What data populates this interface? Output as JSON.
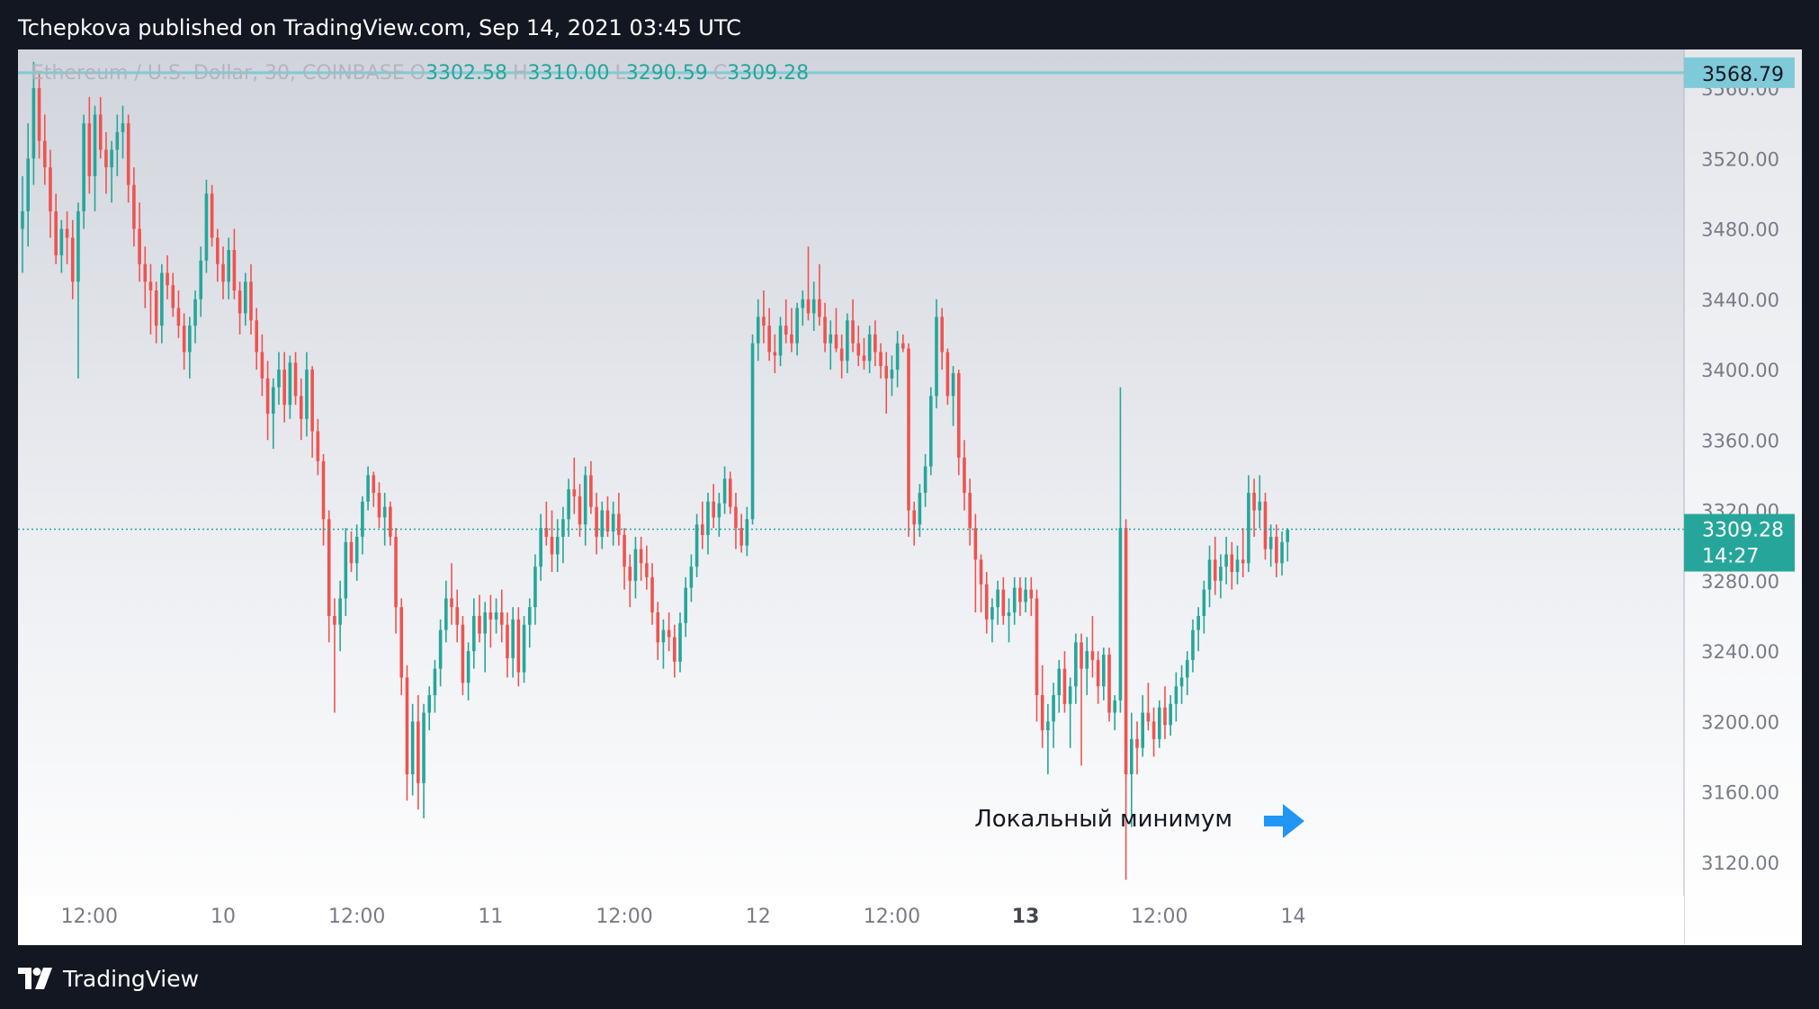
{
  "header": {
    "published_line": "Tchepkova published on TradingView.com, Sep 14, 2021 03:45 UTC"
  },
  "legend": {
    "instrument": "Ethereum / U.S. Dollar, 30, COINBASE",
    "o_label": "O",
    "o_value": "3302.58",
    "h_label": "H",
    "h_value": "3310.00",
    "l_label": "L",
    "l_value": "3290.59",
    "c_label": "C",
    "c_value": "3309.28"
  },
  "footer": {
    "brand": "TradingView"
  },
  "colors": {
    "up": "#26a69a",
    "down": "#ef5350",
    "hline": "#7fcad8",
    "arrow": "#2196f3",
    "axis_text": "#787b86"
  },
  "chart_data": {
    "type": "candlestick",
    "currency_label": "USD",
    "y_ticks": [
      3120,
      3160,
      3200,
      3240,
      3280,
      3320,
      3360,
      3400,
      3440,
      3480,
      3520,
      3560
    ],
    "y_tick_labels": [
      "3120.00",
      "3160.00",
      "3200.00",
      "3240.00",
      "3280.00",
      "3320.00",
      "3360.00",
      "3400.00",
      "3440.00",
      "3480.00",
      "3520.00",
      "3560.00"
    ],
    "ylim": [
      3101,
      3582
    ],
    "x_ticks": [
      {
        "label": "12:00",
        "bar": 12,
        "bold": false
      },
      {
        "label": "10",
        "bar": 36,
        "bold": false
      },
      {
        "label": "12:00",
        "bar": 60,
        "bold": false
      },
      {
        "label": "11",
        "bar": 84,
        "bold": false
      },
      {
        "label": "12:00",
        "bar": 108,
        "bold": false
      },
      {
        "label": "12",
        "bar": 132,
        "bold": false
      },
      {
        "label": "12:00",
        "bar": 156,
        "bold": false
      },
      {
        "label": "13",
        "bar": 180,
        "bold": true
      },
      {
        "label": "12:00",
        "bar": 204,
        "bold": false
      },
      {
        "label": "14",
        "bar": 228,
        "bold": false
      }
    ],
    "horizontal_line": {
      "label": "3568.79",
      "value": 3568.79
    },
    "last_price": {
      "label": "3309.28",
      "countdown": "14:27",
      "value": 3309.28
    },
    "annotation": {
      "text": "Локальный минимум"
    },
    "ohlc": [
      [
        3480,
        3510,
        3455,
        3490
      ],
      [
        3490,
        3540,
        3470,
        3520
      ],
      [
        3520,
        3575,
        3505,
        3560
      ],
      [
        3560,
        3570,
        3520,
        3530
      ],
      [
        3530,
        3545,
        3505,
        3515
      ],
      [
        3515,
        3525,
        3475,
        3490
      ],
      [
        3490,
        3500,
        3460,
        3465
      ],
      [
        3465,
        3485,
        3455,
        3480
      ],
      [
        3480,
        3490,
        3460,
        3475
      ],
      [
        3475,
        3485,
        3440,
        3450
      ],
      [
        3450,
        3495,
        3395,
        3490
      ],
      [
        3490,
        3545,
        3480,
        3540
      ],
      [
        3540,
        3555,
        3500,
        3510
      ],
      [
        3510,
        3550,
        3490,
        3545
      ],
      [
        3545,
        3555,
        3520,
        3525
      ],
      [
        3525,
        3535,
        3500,
        3515
      ],
      [
        3515,
        3530,
        3495,
        3525
      ],
      [
        3525,
        3545,
        3510,
        3535
      ],
      [
        3535,
        3550,
        3520,
        3540
      ],
      [
        3540,
        3545,
        3495,
        3505
      ],
      [
        3505,
        3515,
        3470,
        3480
      ],
      [
        3480,
        3495,
        3450,
        3460
      ],
      [
        3460,
        3470,
        3435,
        3450
      ],
      [
        3450,
        3460,
        3420,
        3445
      ],
      [
        3445,
        3450,
        3415,
        3425
      ],
      [
        3425,
        3460,
        3415,
        3455
      ],
      [
        3455,
        3465,
        3440,
        3448
      ],
      [
        3448,
        3455,
        3430,
        3435
      ],
      [
        3435,
        3445,
        3418,
        3425
      ],
      [
        3425,
        3432,
        3400,
        3410
      ],
      [
        3410,
        3430,
        3395,
        3425
      ],
      [
        3425,
        3445,
        3415,
        3440
      ],
      [
        3440,
        3470,
        3430,
        3462
      ],
      [
        3462,
        3508,
        3455,
        3500
      ],
      [
        3500,
        3505,
        3470,
        3475
      ],
      [
        3475,
        3480,
        3450,
        3460
      ],
      [
        3460,
        3470,
        3440,
        3450
      ],
      [
        3450,
        3475,
        3440,
        3468
      ],
      [
        3468,
        3480,
        3440,
        3445
      ],
      [
        3445,
        3450,
        3420,
        3432
      ],
      [
        3432,
        3455,
        3425,
        3450
      ],
      [
        3450,
        3460,
        3420,
        3428
      ],
      [
        3428,
        3435,
        3400,
        3410
      ],
      [
        3410,
        3420,
        3385,
        3395
      ],
      [
        3395,
        3405,
        3360,
        3375
      ],
      [
        3375,
        3395,
        3355,
        3390
      ],
      [
        3390,
        3410,
        3380,
        3400
      ],
      [
        3400,
        3410,
        3370,
        3380
      ],
      [
        3380,
        3408,
        3372,
        3404
      ],
      [
        3404,
        3410,
        3380,
        3385
      ],
      [
        3385,
        3395,
        3360,
        3372
      ],
      [
        3372,
        3410,
        3362,
        3400
      ],
      [
        3400,
        3402,
        3350,
        3365
      ],
      [
        3365,
        3372,
        3340,
        3348
      ],
      [
        3348,
        3352,
        3300,
        3315
      ],
      [
        3315,
        3320,
        3245,
        3260
      ],
      [
        3260,
        3270,
        3205,
        3255
      ],
      [
        3255,
        3280,
        3240,
        3270
      ],
      [
        3270,
        3310,
        3260,
        3302
      ],
      [
        3302,
        3308,
        3285,
        3290
      ],
      [
        3290,
        3312,
        3280,
        3305
      ],
      [
        3305,
        3328,
        3295,
        3325
      ],
      [
        3325,
        3345,
        3320,
        3340
      ],
      [
        3340,
        3342,
        3322,
        3330
      ],
      [
        3330,
        3336,
        3310,
        3316
      ],
      [
        3316,
        3330,
        3300,
        3322
      ],
      [
        3322,
        3325,
        3300,
        3305
      ],
      [
        3305,
        3310,
        3250,
        3265
      ],
      [
        3265,
        3270,
        3215,
        3225
      ],
      [
        3225,
        3232,
        3155,
        3170
      ],
      [
        3170,
        3210,
        3158,
        3200
      ],
      [
        3200,
        3215,
        3150,
        3165
      ],
      [
        3165,
        3210,
        3145,
        3205
      ],
      [
        3205,
        3220,
        3195,
        3215
      ],
      [
        3215,
        3235,
        3205,
        3230
      ],
      [
        3230,
        3258,
        3220,
        3252
      ],
      [
        3252,
        3280,
        3245,
        3270
      ],
      [
        3270,
        3290,
        3255,
        3265
      ],
      [
        3265,
        3275,
        3245,
        3255
      ],
      [
        3255,
        3260,
        3215,
        3222
      ],
      [
        3222,
        3245,
        3212,
        3240
      ],
      [
        3240,
        3270,
        3230,
        3260
      ],
      [
        3260,
        3272,
        3245,
        3250
      ],
      [
        3250,
        3268,
        3228,
        3262
      ],
      [
        3262,
        3272,
        3242,
        3258
      ],
      [
        3258,
        3270,
        3250,
        3262
      ],
      [
        3262,
        3275,
        3245,
        3255
      ],
      [
        3255,
        3262,
        3225,
        3236
      ],
      [
        3236,
        3265,
        3225,
        3258
      ],
      [
        3258,
        3265,
        3220,
        3228
      ],
      [
        3228,
        3260,
        3222,
        3255
      ],
      [
        3255,
        3270,
        3242,
        3265
      ],
      [
        3265,
        3295,
        3255,
        3288
      ],
      [
        3288,
        3318,
        3280,
        3310
      ],
      [
        3310,
        3325,
        3300,
        3305
      ],
      [
        3305,
        3320,
        3285,
        3295
      ],
      [
        3295,
        3315,
        3285,
        3305
      ],
      [
        3305,
        3322,
        3290,
        3315
      ],
      [
        3315,
        3338,
        3305,
        3332
      ],
      [
        3332,
        3350,
        3318,
        3328
      ],
      [
        3328,
        3335,
        3305,
        3312
      ],
      [
        3312,
        3345,
        3300,
        3340
      ],
      [
        3340,
        3348,
        3318,
        3322
      ],
      [
        3322,
        3330,
        3295,
        3305
      ],
      [
        3305,
        3325,
        3298,
        3320
      ],
      [
        3320,
        3328,
        3305,
        3308
      ],
      [
        3308,
        3325,
        3300,
        3318
      ],
      [
        3318,
        3330,
        3300,
        3306
      ],
      [
        3306,
        3310,
        3275,
        3288
      ],
      [
        3288,
        3295,
        3265,
        3280
      ],
      [
        3280,
        3305,
        3270,
        3298
      ],
      [
        3298,
        3305,
        3280,
        3290
      ],
      [
        3290,
        3300,
        3275,
        3282
      ],
      [
        3282,
        3290,
        3255,
        3262
      ],
      [
        3262,
        3268,
        3235,
        3245
      ],
      [
        3245,
        3258,
        3230,
        3252
      ],
      [
        3252,
        3262,
        3240,
        3248
      ],
      [
        3248,
        3255,
        3225,
        3234
      ],
      [
        3234,
        3262,
        3228,
        3256
      ],
      [
        3256,
        3282,
        3248,
        3276
      ],
      [
        3276,
        3295,
        3268,
        3288
      ],
      [
        3288,
        3318,
        3282,
        3312
      ],
      [
        3312,
        3325,
        3298,
        3306
      ],
      [
        3306,
        3330,
        3295,
        3325
      ],
      [
        3325,
        3335,
        3310,
        3316
      ],
      [
        3316,
        3330,
        3305,
        3324
      ],
      [
        3324,
        3345,
        3318,
        3338
      ],
      [
        3338,
        3342,
        3318,
        3322
      ],
      [
        3322,
        3330,
        3298,
        3310
      ],
      [
        3310,
        3318,
        3296,
        3300
      ],
      [
        3300,
        3322,
        3294,
        3315
      ],
      [
        3315,
        3420,
        3312,
        3415
      ],
      [
        3415,
        3440,
        3405,
        3430
      ],
      [
        3430,
        3445,
        3415,
        3425
      ],
      [
        3425,
        3435,
        3405,
        3410
      ],
      [
        3410,
        3420,
        3398,
        3408
      ],
      [
        3408,
        3430,
        3402,
        3425
      ],
      [
        3425,
        3440,
        3415,
        3420
      ],
      [
        3420,
        3435,
        3410,
        3415
      ],
      [
        3415,
        3438,
        3408,
        3435
      ],
      [
        3435,
        3445,
        3425,
        3440
      ],
      [
        3440,
        3470,
        3428,
        3432
      ],
      [
        3432,
        3450,
        3422,
        3440
      ],
      [
        3440,
        3460,
        3425,
        3430
      ],
      [
        3430,
        3438,
        3410,
        3415
      ],
      [
        3415,
        3428,
        3400,
        3420
      ],
      [
        3420,
        3435,
        3410,
        3412
      ],
      [
        3412,
        3420,
        3395,
        3405
      ],
      [
        3405,
        3432,
        3398,
        3428
      ],
      [
        3428,
        3440,
        3410,
        3415
      ],
      [
        3415,
        3425,
        3402,
        3408
      ],
      [
        3408,
        3418,
        3400,
        3405
      ],
      [
        3405,
        3425,
        3398,
        3420
      ],
      [
        3420,
        3428,
        3402,
        3410
      ],
      [
        3410,
        3415,
        3395,
        3402
      ],
      [
        3402,
        3410,
        3375,
        3395
      ],
      [
        3395,
        3408,
        3385,
        3400
      ],
      [
        3400,
        3422,
        3390,
        3415
      ],
      [
        3415,
        3420,
        3410,
        3412
      ],
      [
        3412,
        3415,
        3305,
        3320
      ],
      [
        3320,
        3325,
        3300,
        3312
      ],
      [
        3312,
        3335,
        3305,
        3330
      ],
      [
        3330,
        3352,
        3322,
        3345
      ],
      [
        3345,
        3390,
        3340,
        3385
      ],
      [
        3385,
        3440,
        3378,
        3430
      ],
      [
        3430,
        3435,
        3400,
        3410
      ],
      [
        3410,
        3412,
        3380,
        3385
      ],
      [
        3385,
        3402,
        3368,
        3398
      ],
      [
        3398,
        3400,
        3340,
        3350
      ],
      [
        3350,
        3360,
        3320,
        3330
      ],
      [
        3330,
        3338,
        3300,
        3310
      ],
      [
        3310,
        3318,
        3262,
        3292
      ],
      [
        3292,
        3295,
        3262,
        3278
      ],
      [
        3278,
        3285,
        3250,
        3258
      ],
      [
        3258,
        3270,
        3245,
        3265
      ],
      [
        3265,
        3280,
        3255,
        3275
      ],
      [
        3275,
        3282,
        3255,
        3260
      ],
      [
        3260,
        3270,
        3245,
        3262
      ],
      [
        3262,
        3282,
        3255,
        3276
      ],
      [
        3276,
        3282,
        3260,
        3268
      ],
      [
        3268,
        3282,
        3262,
        3275
      ],
      [
        3275,
        3282,
        3260,
        3270
      ],
      [
        3270,
        3275,
        3200,
        3215
      ],
      [
        3215,
        3232,
        3185,
        3195
      ],
      [
        3195,
        3210,
        3170,
        3200
      ],
      [
        3200,
        3222,
        3185,
        3215
      ],
      [
        3215,
        3235,
        3205,
        3230
      ],
      [
        3230,
        3240,
        3205,
        3210
      ],
      [
        3210,
        3225,
        3185,
        3220
      ],
      [
        3220,
        3250,
        3210,
        3245
      ],
      [
        3245,
        3250,
        3175,
        3230
      ],
      [
        3230,
        3248,
        3215,
        3240
      ],
      [
        3240,
        3260,
        3225,
        3235
      ],
      [
        3235,
        3240,
        3210,
        3220
      ],
      [
        3220,
        3242,
        3212,
        3238
      ],
      [
        3238,
        3242,
        3200,
        3205
      ],
      [
        3205,
        3215,
        3195,
        3212
      ],
      [
        3212,
        3390,
        3205,
        3310
      ],
      [
        3310,
        3315,
        3110,
        3170
      ],
      [
        3170,
        3205,
        3140,
        3190
      ],
      [
        3190,
        3200,
        3170,
        3185
      ],
      [
        3185,
        3215,
        3180,
        3205
      ],
      [
        3205,
        3222,
        3195,
        3200
      ],
      [
        3200,
        3208,
        3180,
        3190
      ],
      [
        3190,
        3212,
        3185,
        3208
      ],
      [
        3208,
        3220,
        3190,
        3198
      ],
      [
        3198,
        3215,
        3192,
        3210
      ],
      [
        3210,
        3228,
        3200,
        3220
      ],
      [
        3220,
        3232,
        3210,
        3225
      ],
      [
        3225,
        3240,
        3215,
        3235
      ],
      [
        3235,
        3258,
        3228,
        3252
      ],
      [
        3252,
        3265,
        3240,
        3260
      ],
      [
        3260,
        3280,
        3250,
        3275
      ],
      [
        3275,
        3300,
        3265,
        3292
      ],
      [
        3292,
        3305,
        3272,
        3280
      ],
      [
        3280,
        3295,
        3270,
        3288
      ],
      [
        3288,
        3305,
        3278,
        3295
      ],
      [
        3295,
        3302,
        3275,
        3285
      ],
      [
        3285,
        3300,
        3278,
        3292
      ],
      [
        3292,
        3310,
        3282,
        3290
      ],
      [
        3290,
        3340,
        3285,
        3330
      ],
      [
        3330,
        3338,
        3305,
        3320
      ],
      [
        3320,
        3340,
        3310,
        3325
      ],
      [
        3325,
        3330,
        3292,
        3298
      ],
      [
        3298,
        3312,
        3288,
        3305
      ],
      [
        3305,
        3312,
        3282,
        3290
      ],
      [
        3290,
        3308,
        3283,
        3302
      ],
      [
        3302,
        3310,
        3291,
        3309
      ]
    ]
  }
}
